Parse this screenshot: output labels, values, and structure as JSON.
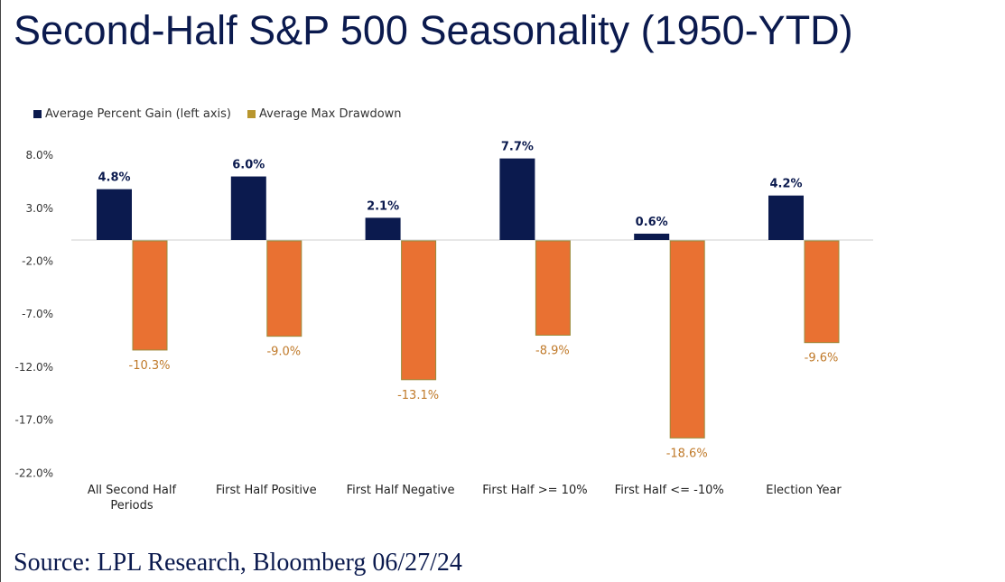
{
  "title": "Second-Half S&P 500 Seasonality (1950-YTD)",
  "source": "Source: LPL Research, Bloomberg 06/27/24",
  "chart_data": {
    "type": "bar",
    "title": "Second-Half S&P 500 Seasonality (1950-YTD)",
    "categories": [
      "All Second Half Periods",
      "First Half Positive",
      "First Half Negative",
      "First Half >= 10%",
      "First Half <= -10%",
      "Election Year"
    ],
    "category_lines": [
      [
        "All Second Half",
        "Periods"
      ],
      [
        "First Half Positive"
      ],
      [
        "First Half Negative"
      ],
      [
        "First Half >= 10%"
      ],
      [
        "First Half <= -10%"
      ],
      [
        "Election Year"
      ]
    ],
    "series": [
      {
        "name": "Average Percent Gain (left axis)",
        "values": [
          4.8,
          6.0,
          2.1,
          7.7,
          0.6,
          4.2
        ],
        "labels": [
          "4.8%",
          "6.0%",
          "2.1%",
          "7.7%",
          "0.6%",
          "4.2%"
        ],
        "color": "#0b1a4e"
      },
      {
        "name": "Average Max Drawdown",
        "values": [
          -10.3,
          -9.0,
          -13.1,
          -8.9,
          -18.6,
          -9.6
        ],
        "labels": [
          "-10.3%",
          "-9.0%",
          "-13.1%",
          "-8.9%",
          "-18.6%",
          "-9.6%"
        ],
        "color": "#e97132",
        "legend_color": "#b8962e",
        "edge_color": "#9a8a3a"
      }
    ],
    "yticks": [
      "8.0%",
      "3.0%",
      "-2.0%",
      "-7.0%",
      "-12.0%",
      "-17.0%",
      "-22.0%"
    ],
    "ytick_values": [
      8,
      3,
      -2,
      -7,
      -12,
      -17,
      -22
    ],
    "ylim": [
      -22,
      8
    ],
    "grid": false,
    "legend_position": "top-left"
  }
}
